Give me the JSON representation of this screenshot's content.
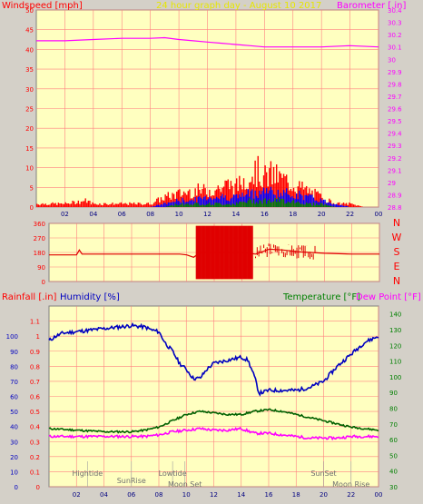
{
  "colors": {
    "background": "#d4d0c8",
    "plot_bg": "#ffffc0",
    "grid": "#ff8080",
    "wind_avg": "#0000ff",
    "wind_low": "#008000",
    "wind_gust": "#ff0000",
    "barometer": "#ff00ff",
    "direction": "#e00000",
    "humidity": "#0000c0",
    "temperature": "#006000",
    "dewpoint": "#ff00ff",
    "rain_label": "#ff0000",
    "humidity_label": "#0000c0",
    "temperature_label": "#008000",
    "dewpoint_label": "#ff00ff",
    "astro_text": "#707070"
  },
  "header": {
    "windspeed_label": "Windspeed [mph]",
    "title": "24 hour graph day - August 10 2017",
    "barometer_label": "Barometer [.in]"
  },
  "panel2": {
    "compass": [
      "N",
      "W",
      "S",
      "E",
      "N"
    ]
  },
  "panel3": {
    "rainfall_label": "Rainfall [.in]",
    "humidity_label": "Humidity [%]",
    "temperature_label": "Temperature [°F]",
    "dewpoint_label": "Dew Point [°F]"
  },
  "events": [
    {
      "label": "Hightide",
      "hour": 2.8
    },
    {
      "label": "SunRise",
      "hour": 6.0
    },
    {
      "label": "Lowtide",
      "hour": 9.0
    },
    {
      "label": "Moon Set",
      "hour": 9.9
    },
    {
      "label": "SunSet",
      "hour": 20.0
    },
    {
      "label": "Moon Rise",
      "hour": 22.0
    }
  ],
  "chart_data": [
    {
      "type": "line",
      "name": "wind_and_pressure",
      "title": "24 hour graph day - August 10 2017",
      "x_ticks": [
        "02",
        "04",
        "06",
        "08",
        "10",
        "12",
        "14",
        "16",
        "18",
        "20",
        "22",
        "00"
      ],
      "xlim": [
        0,
        24
      ],
      "y_left": {
        "label": "Windspeed [mph]",
        "ylim": [
          0,
          50
        ],
        "ticks": [
          "0",
          "5",
          "10",
          "15",
          "20",
          "25",
          "30",
          "35",
          "40",
          "45",
          "50"
        ]
      },
      "y_right": {
        "label": "Barometer [.in]",
        "ylim": [
          28.8,
          30.4
        ],
        "ticks": [
          "28.8",
          "28.9",
          "29",
          "29.1",
          "29.2",
          "29.3",
          "29.4",
          "29.5",
          "29.6",
          "29.7",
          "29.8",
          "29.9",
          "30",
          "30.1",
          "30.2",
          "30.3",
          "30.4"
        ]
      },
      "series": [
        {
          "name": "Barometer",
          "axis": "right",
          "x": [
            0,
            2,
            4,
            6,
            8,
            9,
            10,
            11,
            12,
            13,
            14,
            15,
            16,
            18,
            20,
            22,
            24
          ],
          "y": [
            30.15,
            30.15,
            30.16,
            30.17,
            30.17,
            30.175,
            30.16,
            30.15,
            30.14,
            30.13,
            30.12,
            30.11,
            30.1,
            30.1,
            30.1,
            30.11,
            30.1
          ]
        },
        {
          "name": "Gust",
          "axis": "left",
          "x": [
            0,
            2,
            3.5,
            4,
            8,
            8.5,
            9,
            10,
            11,
            12,
            13,
            13.5,
            14,
            14.5,
            15,
            15.5,
            16,
            16.5,
            17,
            17.5,
            18,
            18.5,
            19,
            19.5,
            20,
            20.5,
            21,
            22,
            23,
            24
          ],
          "y": [
            1,
            1,
            2,
            1,
            1,
            2,
            3,
            4,
            5,
            5,
            6,
            7,
            6,
            8,
            10,
            11,
            9,
            10,
            9,
            8,
            7,
            6,
            5,
            4,
            3,
            2,
            1,
            1,
            0,
            0
          ]
        },
        {
          "name": "Average",
          "axis": "left",
          "x": [
            0,
            8,
            9,
            10,
            11,
            12,
            13,
            14,
            15,
            16,
            17,
            18,
            19,
            20,
            21,
            22,
            24
          ],
          "y": [
            0,
            0,
            1,
            2,
            2,
            3,
            3,
            3,
            4,
            5,
            4,
            4,
            3,
            2,
            1,
            0,
            0
          ]
        },
        {
          "name": "Low",
          "axis": "left",
          "x": [
            0,
            8,
            9,
            10,
            11,
            12,
            13,
            14,
            15,
            16,
            17,
            18,
            19,
            20,
            21,
            24
          ],
          "y": [
            0,
            0,
            0,
            1,
            1,
            1,
            1,
            1,
            2,
            2,
            2,
            2,
            1,
            1,
            0,
            0
          ]
        }
      ]
    },
    {
      "type": "line",
      "name": "wind_direction",
      "xlim": [
        0,
        24
      ],
      "ylim": [
        0,
        360
      ],
      "y_ticks": [
        "0",
        "90",
        "180",
        "270",
        "360"
      ],
      "series": [
        {
          "name": "Direction",
          "x": [
            0,
            2,
            2.2,
            2.4,
            4,
            6,
            8,
            9.5,
            10,
            10.5,
            11,
            12,
            13,
            14,
            14.5,
            15,
            16,
            17,
            18,
            19,
            20,
            22,
            24
          ],
          "y": [
            165,
            165,
            195,
            170,
            170,
            170,
            170,
            170,
            165,
            150,
            180,
            180,
            180,
            180,
            175,
            170,
            200,
            195,
            185,
            180,
            175,
            170,
            170
          ]
        }
      ],
      "band": {
        "from_hour": 10.7,
        "to_hour": 14.8,
        "min": 15,
        "max": 345
      }
    },
    {
      "type": "line",
      "name": "humidity_temperature",
      "xlim": [
        0,
        24
      ],
      "y_left": {
        "label": "Rainfall [.in]",
        "ylim": [
          0,
          1.2
        ],
        "ticks": [
          "0",
          "0.1",
          "0.2",
          "0.3",
          "0.4",
          "0.5",
          "0.6",
          "0.7",
          "0.8",
          "0.9",
          "1",
          "1.1"
        ]
      },
      "y_left2": {
        "label": "Humidity [%]",
        "ylim": [
          0,
          120
        ],
        "ticks": [
          "0",
          "10",
          "20",
          "30",
          "40",
          "50",
          "60",
          "70",
          "80",
          "90",
          "100"
        ]
      },
      "y_right": {
        "label": "Temperature [°F]",
        "ylim": [
          30,
          145
        ],
        "ticks": [
          "30",
          "40",
          "50",
          "60",
          "70",
          "80",
          "90",
          "100",
          "110",
          "120",
          "130",
          "140"
        ]
      },
      "series": [
        {
          "name": "Humidity",
          "axis": "left2",
          "x": [
            0,
            0.5,
            1,
            2,
            3,
            4,
            5,
            6,
            7,
            7.5,
            8,
            8.5,
            9,
            9.5,
            10,
            10.5,
            11,
            11.5,
            12,
            13,
            14,
            14.5,
            15,
            15.3,
            16,
            17,
            18,
            19,
            20,
            21,
            22,
            23,
            24
          ],
          "y": [
            97,
            100,
            102,
            103,
            104,
            105,
            106,
            107,
            106,
            104,
            103,
            95,
            90,
            82,
            78,
            72,
            72,
            78,
            82,
            84,
            86,
            84,
            72,
            62,
            64,
            64,
            64,
            66,
            70,
            80,
            88,
            96,
            100
          ]
        },
        {
          "name": "Temperature",
          "axis": "right",
          "x": [
            0,
            2,
            4,
            6,
            7,
            8,
            9,
            10,
            11,
            12,
            13,
            14,
            15,
            16,
            17,
            18,
            19,
            20,
            21,
            22,
            23,
            24
          ],
          "y": [
            67,
            66,
            65,
            65,
            66,
            68,
            72,
            76,
            78,
            77,
            76,
            76,
            78,
            79,
            78,
            76,
            74,
            72,
            70,
            68,
            67,
            66
          ]
        },
        {
          "name": "Dew Point",
          "axis": "right",
          "x": [
            0,
            2,
            4,
            6,
            7,
            8,
            9,
            10,
            11,
            12,
            13,
            14,
            15,
            16,
            17,
            18,
            19,
            20,
            21,
            22,
            23,
            24
          ],
          "y": [
            62,
            62,
            62,
            62,
            62,
            63,
            65,
            66,
            67,
            66,
            66,
            67,
            64,
            64,
            63,
            62,
            61,
            61,
            61,
            62,
            62,
            62
          ]
        }
      ]
    }
  ]
}
